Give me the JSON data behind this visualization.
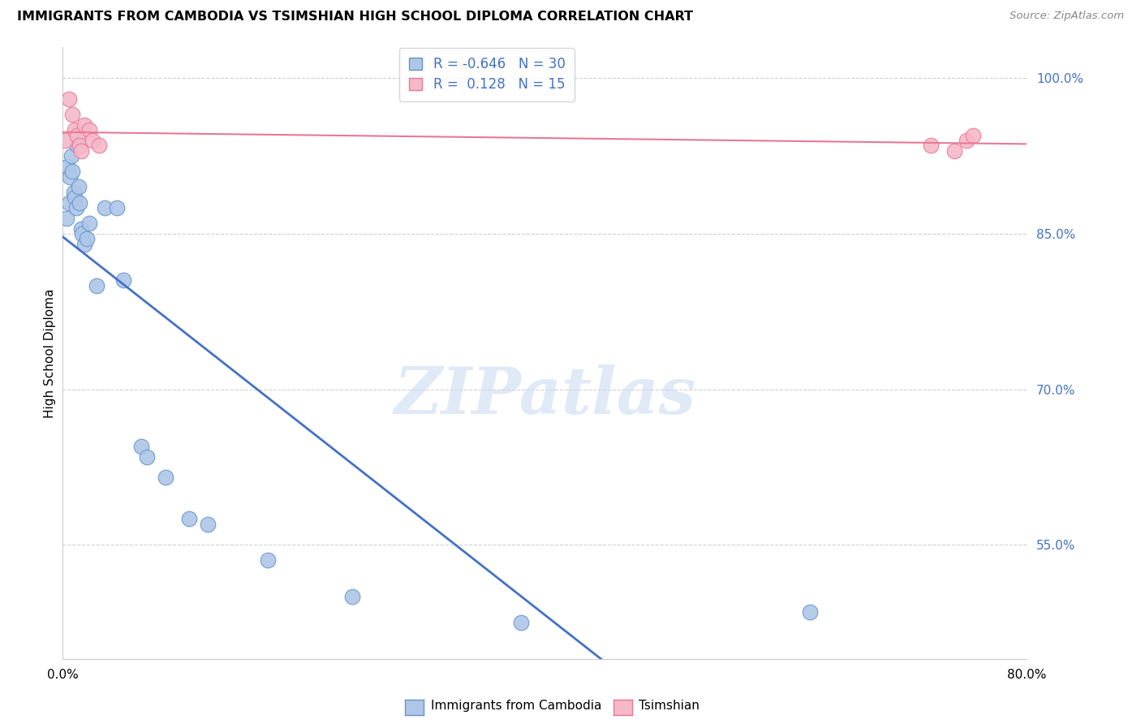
{
  "title": "IMMIGRANTS FROM CAMBODIA VS TSIMSHIAN HIGH SCHOOL DIPLOMA CORRELATION CHART",
  "source": "Source: ZipAtlas.com",
  "ylabel": "High School Diploma",
  "legend_label_blue": "Immigrants from Cambodia",
  "legend_label_pink": "Tsimshian",
  "legend_R_blue": "-0.646",
  "legend_N_blue": "30",
  "legend_R_pink": " 0.128",
  "legend_N_pink": "15",
  "blue_fill": "#aec6e8",
  "pink_fill": "#f5b8c8",
  "blue_edge": "#6496c8",
  "pink_edge": "#e87898",
  "blue_line_color": "#4472c4",
  "pink_line_color": "#e87898",
  "blue_dots_x": [
    0.3,
    0.4,
    0.5,
    0.6,
    0.7,
    0.8,
    0.9,
    1.0,
    1.1,
    1.2,
    1.3,
    1.4,
    1.5,
    1.6,
    1.8,
    2.0,
    2.2,
    2.8,
    3.5,
    4.5,
    5.0,
    6.5,
    7.0,
    8.5,
    10.5,
    12.0,
    17.0,
    24.0,
    38.0,
    62.0
  ],
  "blue_dots_y": [
    86.5,
    91.5,
    88.0,
    90.5,
    92.5,
    91.0,
    89.0,
    88.5,
    87.5,
    93.5,
    89.5,
    88.0,
    85.5,
    85.0,
    84.0,
    84.5,
    86.0,
    80.0,
    87.5,
    87.5,
    80.5,
    64.5,
    63.5,
    61.5,
    57.5,
    57.0,
    53.5,
    50.0,
    47.5,
    48.5
  ],
  "pink_dots_x": [
    0.2,
    0.5,
    0.8,
    1.0,
    1.2,
    1.4,
    1.5,
    1.8,
    2.2,
    2.5,
    3.0,
    72.0,
    74.0,
    75.0,
    75.5
  ],
  "pink_dots_y": [
    94.0,
    98.0,
    96.5,
    95.0,
    94.5,
    93.5,
    93.0,
    95.5,
    95.0,
    94.0,
    93.5,
    93.5,
    93.0,
    94.0,
    94.5
  ],
  "xlim": [
    0,
    80
  ],
  "ylim": [
    44,
    103
  ],
  "right_yticks": [
    55.0,
    70.0,
    85.0,
    100.0
  ],
  "right_ytick_labels": [
    "55.0%",
    "70.0%",
    "85.0%",
    "100.0%"
  ],
  "watermark_text": "ZIPatlas",
  "watermark_color": "#c8d8f0",
  "background_color": "#ffffff",
  "grid_color": "#d0d0d0"
}
